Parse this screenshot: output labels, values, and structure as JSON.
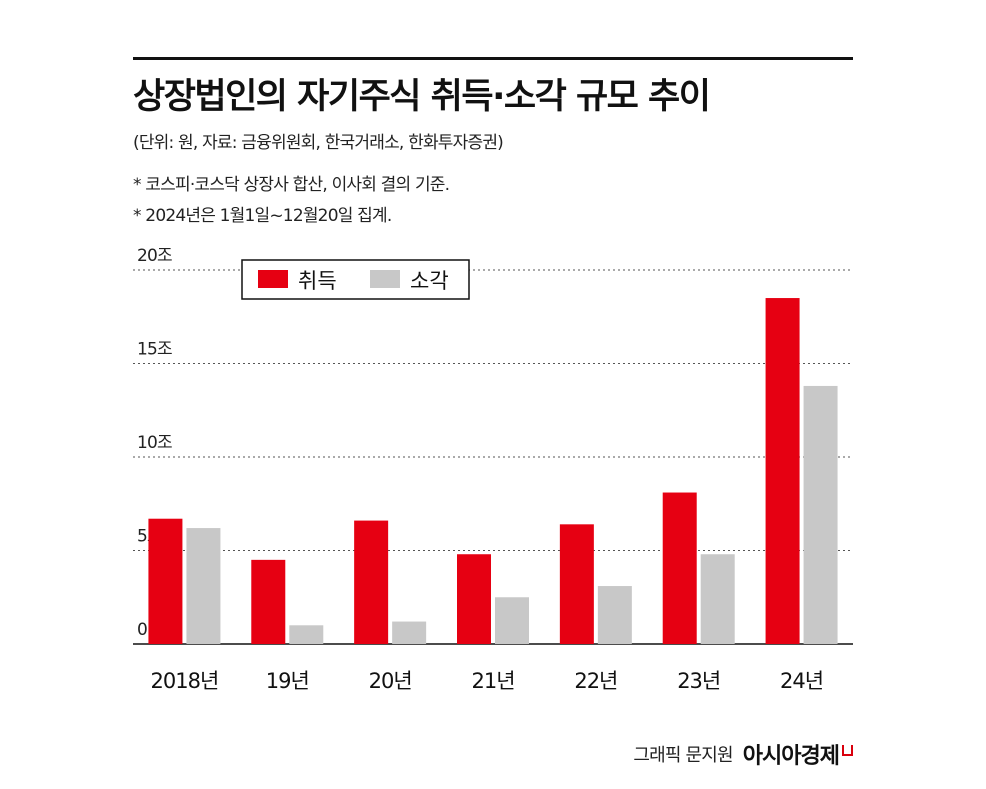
{
  "header": {
    "title": "상장법인의 자기주식 취득·소각 규모 추이",
    "subtitle": "(단위: 원, 자료: 금융위원회, 한국거래소, 한화투자증권)",
    "notes": [
      "* 코스피·코스닥 상장사 합산, 이사회 결의 기준.",
      "* 2024년은 1월1일~12월20일 집계."
    ]
  },
  "chart_data": {
    "type": "bar",
    "categories": [
      "2018년",
      "19년",
      "20년",
      "21년",
      "22년",
      "23년",
      "24년"
    ],
    "series": [
      {
        "name": "취득",
        "color": "#e60012",
        "values": [
          6.7,
          4.5,
          6.6,
          4.8,
          6.4,
          8.1,
          18.5
        ]
      },
      {
        "name": "소각",
        "color": "#c8c8c8",
        "values": [
          6.2,
          1.0,
          1.2,
          2.5,
          3.1,
          4.8,
          13.8
        ]
      }
    ],
    "y_ticks": [
      0,
      5,
      10,
      15,
      20
    ],
    "y_tick_labels": [
      "0",
      "5조",
      "10조",
      "15조",
      "20조"
    ],
    "ylim": [
      0,
      20
    ],
    "grid": true,
    "legend_position": "top-left"
  },
  "credit": {
    "text": "그래픽 문지원",
    "brand": "아시아경제"
  }
}
